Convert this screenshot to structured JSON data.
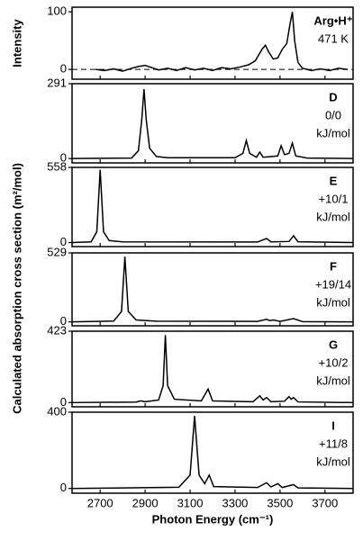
{
  "chart_data": [
    {
      "type": "line",
      "ylabel": "Intensity",
      "labels": [
        "Arg•H⁺",
        "471 K"
      ],
      "xlim": [
        2575,
        3825
      ],
      "ylim": [
        -17,
        108
      ],
      "yticks": [
        0,
        100
      ],
      "x": [
        2680,
        2720,
        2760,
        2800,
        2840,
        2870,
        2900,
        2930,
        2960,
        3000,
        3040,
        3080,
        3120,
        3160,
        3200,
        3240,
        3280,
        3320,
        3360,
        3390,
        3420,
        3435,
        3450,
        3470,
        3490,
        3510,
        3530,
        3545,
        3555,
        3565,
        3580,
        3600,
        3640,
        3680,
        3720,
        3760,
        3800
      ],
      "values": [
        0,
        -2,
        1,
        -3,
        2,
        5,
        7,
        3,
        -1,
        2,
        -2,
        3,
        -1,
        2,
        -2,
        3,
        1,
        4,
        8,
        15,
        35,
        42,
        30,
        18,
        20,
        35,
        45,
        80,
        100,
        50,
        12,
        2,
        -2,
        1,
        -2,
        2,
        0
      ]
    },
    {
      "type": "line",
      "ylabel": "Calculated absorption cross section (m²/mol)",
      "labels": [
        "D",
        "0/0",
        "kJ/mol"
      ],
      "xlim": [
        2575,
        3825
      ],
      "ylim": [
        -17,
        291
      ],
      "yticks": [
        0,
        291
      ],
      "x": [
        2575,
        2840,
        2870,
        2885,
        2895,
        2905,
        2920,
        2950,
        3000,
        3300,
        3335,
        3350,
        3365,
        3395,
        3410,
        3425,
        3490,
        3505,
        3520,
        3540,
        3555,
        3570,
        3620,
        3825
      ],
      "values": [
        0,
        2,
        30,
        150,
        270,
        150,
        40,
        8,
        3,
        3,
        20,
        70,
        20,
        5,
        25,
        5,
        10,
        50,
        15,
        20,
        60,
        10,
        2,
        0
      ]
    },
    {
      "type": "line",
      "labels": [
        "E",
        "+10/1",
        "kJ/mol"
      ],
      "xlim": [
        2575,
        3825
      ],
      "ylim": [
        -30,
        558
      ],
      "yticks": [
        0,
        558
      ],
      "x": [
        2575,
        2660,
        2685,
        2700,
        2715,
        2740,
        2800,
        3400,
        3440,
        3460,
        3540,
        3560,
        3580,
        3825
      ],
      "values": [
        0,
        5,
        80,
        540,
        80,
        15,
        5,
        4,
        30,
        5,
        8,
        50,
        6,
        0
      ]
    },
    {
      "type": "line",
      "labels": [
        "F",
        "+19/14",
        "kJ/mol"
      ],
      "xlim": [
        2575,
        3825
      ],
      "ylim": [
        -30,
        529
      ],
      "yticks": [
        0,
        529
      ],
      "x": [
        2575,
        2760,
        2795,
        2810,
        2825,
        2860,
        2950,
        3400,
        3440,
        3455,
        3470,
        3500,
        3560,
        3600,
        3825
      ],
      "values": [
        0,
        6,
        80,
        500,
        80,
        15,
        5,
        4,
        20,
        10,
        15,
        4,
        25,
        2,
        0
      ]
    },
    {
      "type": "line",
      "labels": [
        "G",
        "+10/2",
        "kJ/mol"
      ],
      "xlim": [
        2575,
        3825
      ],
      "ylim": [
        -25,
        423
      ],
      "yticks": [
        0,
        423
      ],
      "x": [
        2575,
        2860,
        2880,
        2900,
        2960,
        2980,
        2990,
        3000,
        3030,
        3150,
        3180,
        3200,
        3380,
        3410,
        3425,
        3440,
        3460,
        3520,
        3540,
        3550,
        3560,
        3580,
        3825
      ],
      "values": [
        0,
        3,
        10,
        5,
        15,
        100,
        400,
        100,
        20,
        10,
        80,
        10,
        5,
        40,
        15,
        30,
        5,
        8,
        35,
        20,
        30,
        4,
        0
      ]
    },
    {
      "type": "line",
      "labels": [
        "I",
        "+11/8",
        "kJ/mol"
      ],
      "xlim": [
        2575,
        3825
      ],
      "ylim": [
        -25,
        400
      ],
      "yticks": [
        0,
        400
      ],
      "xlabel": "Photon Energy (cm⁻¹)",
      "xticks": [
        2700,
        2900,
        3100,
        3300,
        3500,
        3700
      ],
      "x": [
        2575,
        3050,
        3100,
        3120,
        3140,
        3165,
        3185,
        3205,
        3400,
        3440,
        3460,
        3490,
        3510,
        3560,
        3580,
        3825
      ],
      "values": [
        0,
        6,
        70,
        380,
        70,
        25,
        70,
        10,
        5,
        30,
        8,
        25,
        5,
        20,
        3,
        0
      ]
    }
  ]
}
